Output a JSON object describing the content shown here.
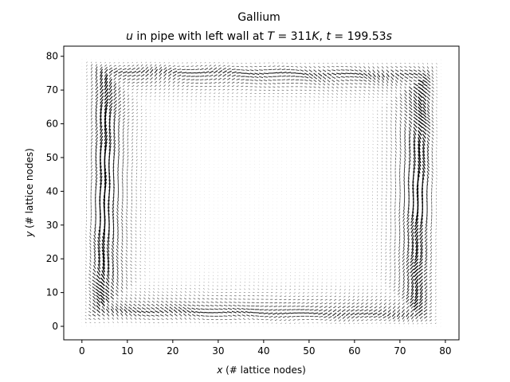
{
  "chart_data": {
    "type": "quiver",
    "title": "Gallium",
    "subtitle": {
      "var": "u",
      "middle": " in pipe with left wall at ",
      "temp_var": "T",
      "temp_eq": " = 311",
      "temp_unit": "K",
      "sep": ", ",
      "time_var": "t",
      "time_eq": " = 199.53",
      "time_unit": "s"
    },
    "xlabel": {
      "var": "x",
      "rest": " (# lattice nodes)"
    },
    "ylabel": {
      "var": "y",
      "rest": " (# lattice nodes)"
    },
    "xlim": [
      -4,
      83
    ],
    "ylim": [
      -4,
      83
    ],
    "xticks": [
      "0",
      "10",
      "20",
      "30",
      "40",
      "50",
      "60",
      "70",
      "80"
    ],
    "yticks": [
      "0",
      "10",
      "20",
      "30",
      "40",
      "50",
      "60",
      "70",
      "80"
    ],
    "grid": {
      "nx": 80,
      "ny": 80,
      "spacing": 1
    },
    "flow": "clockwise convection cell filling the domain; strongest velocity along the left and right walls, slow near the centre",
    "colors": {
      "arrow": "#000000",
      "axes": "#000000",
      "background": "#ffffff"
    }
  }
}
